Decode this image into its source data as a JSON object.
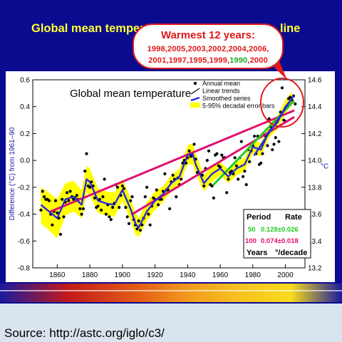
{
  "slide": {
    "title": "Global mean temperature",
    "title_visible_suffix": "line"
  },
  "callout": {
    "heading": "Warmest 12 years:",
    "years_line1": "1998,2005,2003,2002,2004,2006,",
    "years_line2_parts": [
      "2001,1997,1995,1999,",
      "1990",
      ",2000"
    ],
    "highlight_color": "#22aa22",
    "text_color": "#e01a1a"
  },
  "footer": {
    "source_text": "Source: http://astc.org/iglo/c3/"
  },
  "colors": {
    "slide_bg": "#0b0b8f",
    "title": "#ffff33",
    "smoothed": "#2a2ad8",
    "error_band": "#ffff00",
    "trend_150": "#e0106e",
    "trend_100": "#e0106e",
    "trend_50": "#22cc22",
    "trend_25": "#2a2ad8",
    "circle": "#e01a1a"
  },
  "chart_data": {
    "type": "line",
    "title": "Global mean temperature",
    "ylabel": "Difference (°C) from 1961–90",
    "y2label": "°C",
    "xlim": [
      1845,
      2012
    ],
    "ylim": [
      -0.8,
      0.6
    ],
    "y2lim": [
      13.2,
      14.6
    ],
    "xticks": [
      1860,
      1880,
      1900,
      1920,
      1940,
      1960,
      1980,
      2000
    ],
    "yticks": [
      -0.8,
      -0.6,
      -0.4,
      -0.2,
      0.0,
      0.2,
      0.4,
      0.6
    ],
    "yticklabels": [
      "-0.8",
      "-0.6",
      "-0.4",
      "-0.2",
      "0.0",
      "0.2",
      "0.4",
      "0.6"
    ],
    "y2ticks": [
      13.2,
      13.4,
      13.6,
      13.8,
      14.0,
      14.2,
      14.4,
      14.6
    ],
    "y2ticklabels": [
      "13.2",
      "13.4",
      "13.6",
      "13.8",
      "14.0",
      "14.2",
      "14.4",
      "14.6"
    ],
    "legend": {
      "position": "top-right",
      "entries": [
        "Annual mean",
        "Linear trends",
        "Smoothed series",
        "5-95% decadal error bars"
      ]
    },
    "rate_table": {
      "header": [
        "Period",
        "Rate"
      ],
      "rows": [
        {
          "period": "50",
          "rate": "0.128±0.026"
        },
        {
          "period": "100",
          "rate": "0.074±0.018"
        }
      ],
      "footer": [
        "Years",
        "°/decade"
      ]
    },
    "annual_mean": {
      "x": [
        1850,
        1851,
        1852,
        1853,
        1854,
        1855,
        1856,
        1857,
        1858,
        1859,
        1860,
        1861,
        1862,
        1863,
        1864,
        1865,
        1866,
        1867,
        1868,
        1869,
        1870,
        1871,
        1872,
        1873,
        1874,
        1875,
        1876,
        1877,
        1878,
        1879,
        1880,
        1881,
        1882,
        1883,
        1884,
        1885,
        1886,
        1887,
        1888,
        1889,
        1890,
        1891,
        1892,
        1893,
        1894,
        1895,
        1896,
        1897,
        1898,
        1899,
        1900,
        1901,
        1902,
        1903,
        1904,
        1905,
        1906,
        1907,
        1908,
        1909,
        1910,
        1911,
        1912,
        1913,
        1914,
        1915,
        1916,
        1917,
        1918,
        1919,
        1920,
        1921,
        1922,
        1923,
        1924,
        1925,
        1926,
        1927,
        1928,
        1929,
        1930,
        1931,
        1932,
        1933,
        1934,
        1935,
        1936,
        1937,
        1938,
        1939,
        1940,
        1941,
        1942,
        1943,
        1944,
        1945,
        1946,
        1947,
        1948,
        1949,
        1950,
        1951,
        1952,
        1953,
        1954,
        1955,
        1956,
        1957,
        1958,
        1959,
        1960,
        1961,
        1962,
        1963,
        1964,
        1965,
        1966,
        1967,
        1968,
        1969,
        1970,
        1971,
        1972,
        1973,
        1974,
        1975,
        1976,
        1977,
        1978,
        1979,
        1980,
        1981,
        1982,
        1983,
        1984,
        1985,
        1986,
        1987,
        1988,
        1989,
        1990,
        1991,
        1992,
        1993,
        1994,
        1995,
        1996,
        1997,
        1998,
        1999,
        2000,
        2001,
        2002,
        2003,
        2004,
        2005,
        2006
      ],
      "y": [
        -0.37,
        -0.23,
        -0.27,
        -0.29,
        -0.29,
        -0.3,
        -0.4,
        -0.48,
        -0.38,
        -0.3,
        -0.39,
        -0.43,
        -0.55,
        -0.29,
        -0.42,
        -0.31,
        -0.24,
        -0.3,
        -0.23,
        -0.27,
        -0.29,
        -0.28,
        -0.26,
        -0.29,
        -0.36,
        -0.4,
        -0.36,
        -0.08,
        0.05,
        -0.19,
        -0.2,
        -0.16,
        -0.19,
        -0.28,
        -0.35,
        -0.34,
        -0.29,
        -0.37,
        -0.27,
        -0.14,
        -0.4,
        -0.33,
        -0.42,
        -0.44,
        -0.35,
        -0.32,
        -0.18,
        -0.2,
        -0.35,
        -0.26,
        -0.19,
        -0.21,
        -0.35,
        -0.42,
        -0.47,
        -0.3,
        -0.27,
        -0.44,
        -0.48,
        -0.51,
        -0.45,
        -0.52,
        -0.48,
        -0.43,
        -0.27,
        -0.2,
        -0.4,
        -0.48,
        -0.34,
        -0.28,
        -0.29,
        -0.22,
        -0.33,
        -0.29,
        -0.29,
        -0.23,
        -0.1,
        -0.22,
        -0.22,
        -0.36,
        -0.16,
        -0.11,
        -0.14,
        -0.27,
        -0.13,
        -0.18,
        -0.14,
        -0.02,
        -0.0,
        -0.02,
        0.02,
        0.07,
        0.03,
        0.04,
        0.12,
        0.01,
        -0.09,
        -0.1,
        -0.1,
        -0.11,
        -0.19,
        -0.06,
        0.0,
        0.07,
        -0.18,
        -0.19,
        -0.28,
        0.04,
        0.05,
        -0.04,
        -0.05,
        0.04,
        0.02,
        0.02,
        -0.24,
        -0.14,
        -0.09,
        -0.08,
        -0.1,
        0.02,
        -0.04,
        -0.14,
        0.02,
        0.14,
        -0.12,
        -0.08,
        -0.18,
        0.08,
        -0.01,
        0.07,
        0.11,
        0.18,
        0.05,
        0.18,
        -0.03,
        -0.02,
        0.05,
        0.19,
        0.18,
        0.11,
        0.31,
        0.25,
        0.08,
        0.12,
        0.17,
        0.29,
        0.14,
        0.36,
        0.54,
        0.3,
        0.29,
        0.4,
        0.46,
        0.47,
        0.45,
        0.48,
        0.42
      ]
    },
    "smoothed_series": {
      "x": [
        1850,
        1855,
        1860,
        1865,
        1870,
        1875,
        1878,
        1880,
        1885,
        1890,
        1895,
        1900,
        1905,
        1908,
        1910,
        1915,
        1920,
        1925,
        1930,
        1935,
        1940,
        1943,
        1945,
        1950,
        1955,
        1960,
        1965,
        1970,
        1975,
        1980,
        1985,
        1990,
        1995,
        2000,
        2004
      ],
      "y": [
        -0.33,
        -0.38,
        -0.43,
        -0.29,
        -0.27,
        -0.33,
        -0.14,
        -0.16,
        -0.3,
        -0.32,
        -0.33,
        -0.22,
        -0.36,
        -0.47,
        -0.5,
        -0.38,
        -0.3,
        -0.25,
        -0.17,
        -0.12,
        0.04,
        0.05,
        -0.03,
        -0.17,
        -0.1,
        -0.06,
        -0.12,
        -0.06,
        -0.03,
        0.1,
        0.08,
        0.22,
        0.28,
        0.4,
        0.46
      ]
    },
    "error_band": {
      "x": [
        1850,
        1855,
        1860,
        1865,
        1870,
        1875,
        1878,
        1880,
        1885,
        1890,
        1895,
        1900,
        1905,
        1908,
        1910,
        1915,
        1920,
        1925,
        1930,
        1935,
        1940,
        1943,
        1945,
        1950,
        1955,
        1960,
        1965,
        1970,
        1975,
        1980,
        1985,
        1990,
        1995,
        2000,
        2004
      ],
      "lower": [
        -0.47,
        -0.52,
        -0.58,
        -0.41,
        -0.38,
        -0.43,
        -0.24,
        -0.26,
        -0.39,
        -0.41,
        -0.42,
        -0.3,
        -0.44,
        -0.55,
        -0.57,
        -0.45,
        -0.37,
        -0.31,
        -0.23,
        -0.18,
        -0.03,
        -0.03,
        -0.1,
        -0.23,
        -0.16,
        -0.11,
        -0.17,
        -0.11,
        -0.08,
        0.05,
        0.03,
        0.17,
        0.23,
        0.35,
        0.41
      ],
      "upper": [
        -0.2,
        -0.24,
        -0.29,
        -0.17,
        -0.15,
        -0.22,
        -0.04,
        -0.06,
        -0.21,
        -0.23,
        -0.24,
        -0.14,
        -0.28,
        -0.39,
        -0.43,
        -0.31,
        -0.23,
        -0.19,
        -0.11,
        -0.06,
        0.11,
        0.13,
        0.05,
        -0.11,
        -0.04,
        -0.01,
        -0.07,
        -0.01,
        0.02,
        0.15,
        0.13,
        0.27,
        0.33,
        0.45,
        0.51
      ]
    },
    "linear_trends": [
      {
        "period": "150",
        "x": [
          1856,
          2005
        ],
        "y": [
          -0.38,
          0.37
        ]
      },
      {
        "period": "100",
        "x": [
          1906,
          2005
        ],
        "y": [
          -0.4,
          0.32
        ]
      },
      {
        "period": "50",
        "x": [
          1956,
          2005
        ],
        "y": [
          -0.18,
          0.44
        ]
      },
      {
        "period": "25",
        "x": [
          1981,
          2005
        ],
        "y": [
          0.04,
          0.48
        ]
      }
    ]
  }
}
